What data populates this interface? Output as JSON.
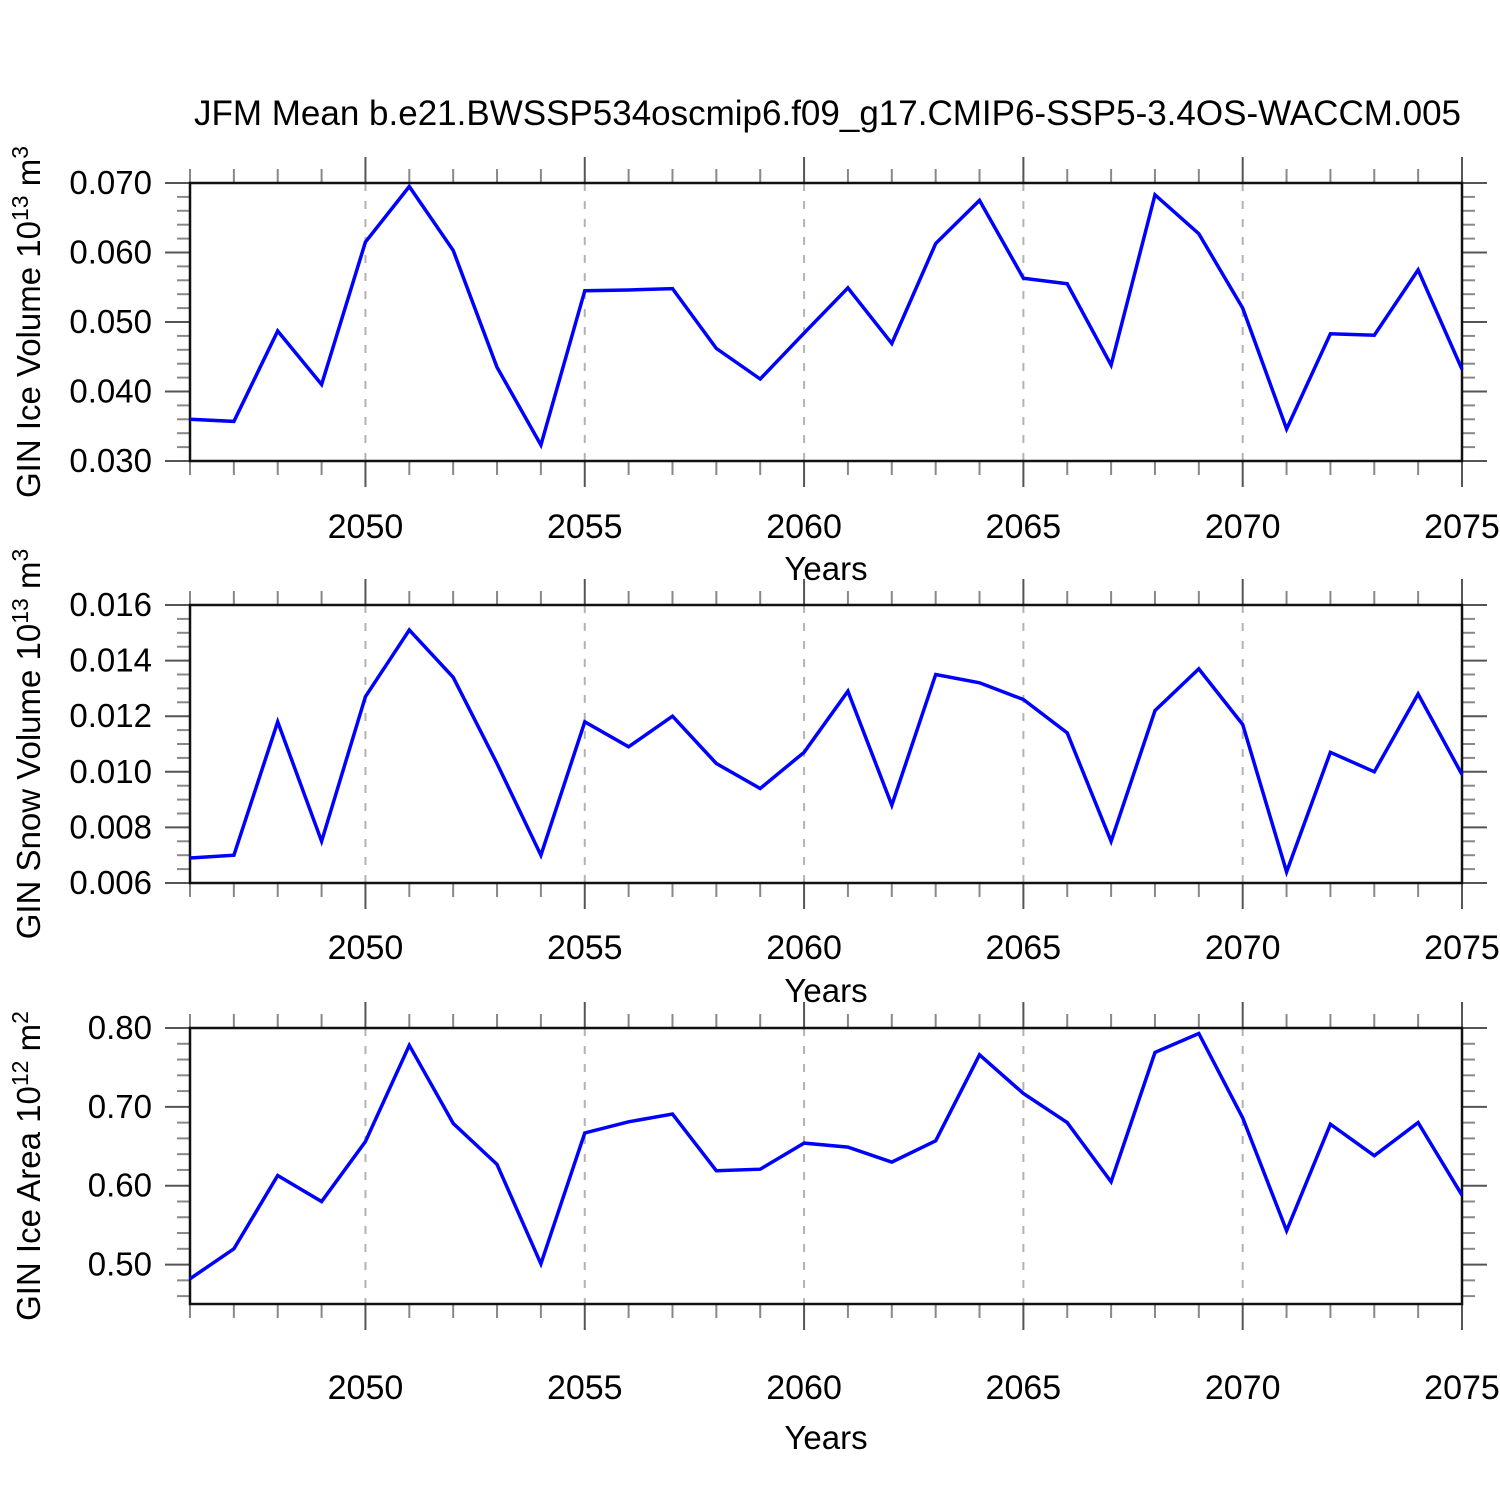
{
  "title": "JFM Mean b.e21.BWSSP534oscmip6.f09_g17.CMIP6-SSP5-3.4OS-WACCM.005",
  "colors": {
    "line": "#0000ff",
    "frame": "#111111",
    "major_tick": "#555555",
    "minor_tick": "#888888",
    "gridline": "#b3b3b3",
    "text": "#000000",
    "background": "#ffffff"
  },
  "chart_data": [
    {
      "type": "line",
      "name": "gin-ice-volume",
      "ylabel": "GIN Ice Volume 10^{13} m^{3}",
      "xlabel": "Years",
      "x": [
        2046,
        2047,
        2048,
        2049,
        2050,
        2051,
        2052,
        2053,
        2054,
        2055,
        2056,
        2057,
        2058,
        2059,
        2060,
        2061,
        2062,
        2063,
        2064,
        2065,
        2066,
        2067,
        2068,
        2069,
        2070,
        2071,
        2072,
        2073,
        2074,
        2075
      ],
      "values": [
        0.036,
        0.0357,
        0.0487,
        0.041,
        0.0615,
        0.0695,
        0.0603,
        0.0435,
        0.0323,
        0.0545,
        0.0546,
        0.0548,
        0.0462,
        0.0418,
        0.0484,
        0.0549,
        0.0469,
        0.0613,
        0.0675,
        0.0563,
        0.0555,
        0.0438,
        0.0683,
        0.0627,
        0.052,
        0.0346,
        0.0483,
        0.0481,
        0.0575,
        0.0432
      ],
      "ylim": [
        0.03,
        0.07
      ],
      "yticks": {
        "values": [
          0.03,
          0.04,
          0.05,
          0.06,
          0.07
        ],
        "labels": [
          "0.030",
          "0.040",
          "0.050",
          "0.060",
          "0.070"
        ]
      },
      "yminor_step": 0.002,
      "xticks": {
        "values": [
          2050,
          2055,
          2060,
          2065,
          2070,
          2075
        ],
        "labels": [
          "2050",
          "2055",
          "2060",
          "2065",
          "2070",
          "2075"
        ]
      },
      "grid_years": [
        2050,
        2055,
        2060,
        2065,
        2070
      ]
    },
    {
      "type": "line",
      "name": "gin-snow-volume",
      "ylabel": "GIN Snow Volume 10^{13} m^{3}",
      "xlabel": "Years",
      "x": [
        2046,
        2047,
        2048,
        2049,
        2050,
        2051,
        2052,
        2053,
        2054,
        2055,
        2056,
        2057,
        2058,
        2059,
        2060,
        2061,
        2062,
        2063,
        2064,
        2065,
        2066,
        2067,
        2068,
        2069,
        2070,
        2071,
        2072,
        2073,
        2074,
        2075
      ],
      "values": [
        0.0069,
        0.007,
        0.0118,
        0.0075,
        0.0127,
        0.0151,
        0.0134,
        0.0103,
        0.007,
        0.0118,
        0.0109,
        0.012,
        0.0103,
        0.0094,
        0.0107,
        0.0129,
        0.0088,
        0.0135,
        0.0132,
        0.0126,
        0.0114,
        0.0075,
        0.0122,
        0.0137,
        0.0117,
        0.0064,
        0.0107,
        0.01,
        0.0128,
        0.0099
      ],
      "ylim": [
        0.006,
        0.016
      ],
      "yticks": {
        "values": [
          0.006,
          0.008,
          0.01,
          0.012,
          0.014,
          0.016
        ],
        "labels": [
          "0.006",
          "0.008",
          "0.010",
          "0.012",
          "0.014",
          "0.016"
        ]
      },
      "yminor_step": 0.0005,
      "xticks": {
        "values": [
          2050,
          2055,
          2060,
          2065,
          2070,
          2075
        ],
        "labels": [
          "2050",
          "2055",
          "2060",
          "2065",
          "2070",
          "2075"
        ]
      },
      "grid_years": [
        2050,
        2055,
        2060,
        2065,
        2070
      ]
    },
    {
      "type": "line",
      "name": "gin-ice-area",
      "ylabel": "GIN Ice Area 10^{12} m^{2}",
      "xlabel": "Years",
      "x": [
        2046,
        2047,
        2048,
        2049,
        2050,
        2051,
        2052,
        2053,
        2054,
        2055,
        2056,
        2057,
        2058,
        2059,
        2060,
        2061,
        2062,
        2063,
        2064,
        2065,
        2066,
        2067,
        2068,
        2069,
        2070,
        2071,
        2072,
        2073,
        2074,
        2075
      ],
      "values": [
        0.482,
        0.52,
        0.613,
        0.58,
        0.656,
        0.778,
        0.679,
        0.627,
        0.501,
        0.667,
        0.681,
        0.691,
        0.619,
        0.621,
        0.654,
        0.649,
        0.63,
        0.657,
        0.766,
        0.717,
        0.68,
        0.605,
        0.769,
        0.793,
        0.686,
        0.543,
        0.678,
        0.638,
        0.68,
        0.588
      ],
      "ylim": [
        0.45,
        0.8
      ],
      "yticks": {
        "values": [
          0.5,
          0.6,
          0.7,
          0.8
        ],
        "labels": [
          "0.50",
          "0.60",
          "0.70",
          "0.80"
        ]
      },
      "yminor_step": 0.02,
      "xticks": {
        "values": [
          2050,
          2055,
          2060,
          2065,
          2070,
          2075
        ],
        "labels": [
          "2050",
          "2055",
          "2060",
          "2065",
          "2070",
          "2075"
        ]
      },
      "grid_years": [
        2050,
        2055,
        2060,
        2065,
        2070
      ]
    }
  ]
}
